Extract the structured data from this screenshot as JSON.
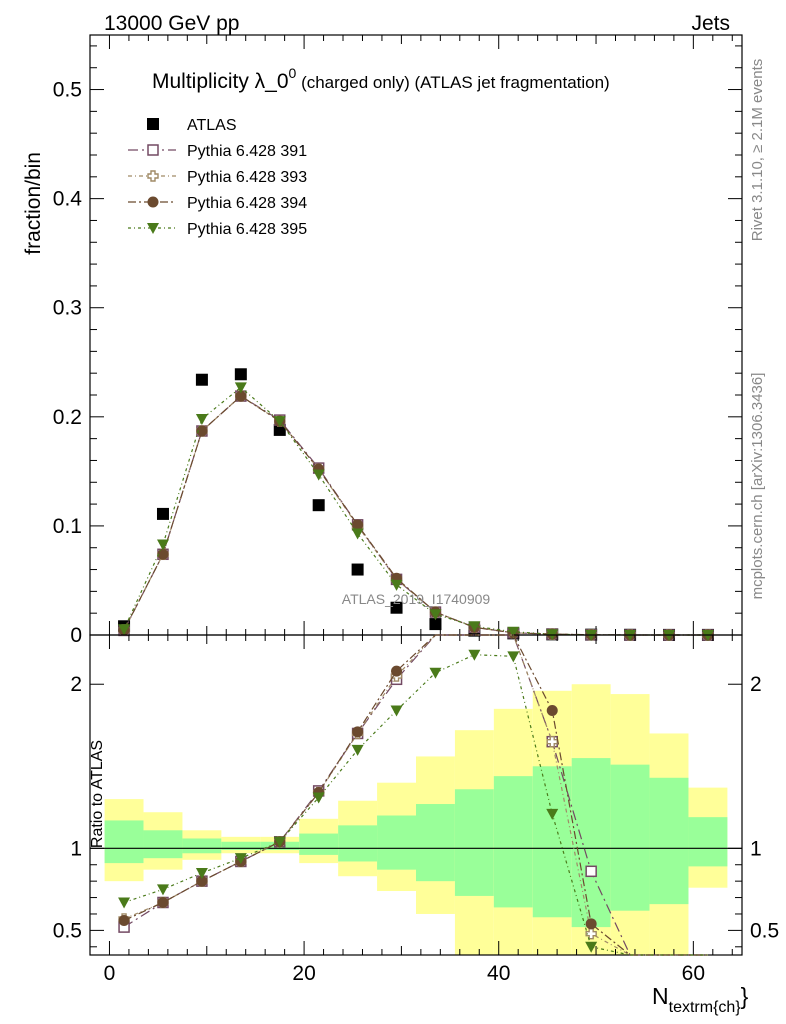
{
  "header": {
    "left": "13000 GeV pp",
    "right": "Jets"
  },
  "sidebar": {
    "rivet": "Rivet 3.1.10, ≥ 2.1M events",
    "mcplots": "mcplots.cern.ch [arXiv:1306.3436]"
  },
  "main": {
    "title": "Multiplicity λ_0",
    "title_sup": "0",
    "title_suffix": " (charged only) (ATLAS jet fragmentation)",
    "ylabel": "fraction/bin",
    "watermark": "ATLAS_2019_I1740909"
  },
  "ratio": {
    "ylabel": "Ratio to ATLAS"
  },
  "xaxis": {
    "label_main": "N",
    "label_sub": "textrm{ch}",
    "label_close": "}"
  },
  "legend": [
    {
      "label": "ATLAS"
    },
    {
      "label": "Pythia 6.428 391"
    },
    {
      "label": "Pythia 6.428 393"
    },
    {
      "label": "Pythia 6.428 394"
    },
    {
      "label": "Pythia 6.428 395"
    }
  ],
  "chart_data": {
    "type": "scatter",
    "x": [
      1.5,
      5.5,
      9.5,
      13.5,
      17.5,
      21.5,
      25.5,
      29.5,
      33.5,
      37.5,
      41.5,
      45.5,
      49.5,
      53.5,
      57.5,
      61.5
    ],
    "bin_edges": [
      -0.5,
      3.5,
      7.5,
      11.5,
      15.5,
      19.5,
      23.5,
      27.5,
      31.5,
      35.5,
      39.5,
      43.5,
      47.5,
      51.5,
      55.5,
      59.5,
      63.5
    ],
    "xlim": [
      -2,
      65
    ],
    "main_ylim": [
      0,
      0.55
    ],
    "ratio_ylim": [
      0.35,
      2.3
    ],
    "ratio_reference": 1,
    "series": [
      {
        "name": "ATLAS",
        "color": "#000000",
        "marker": "square-filled",
        "values": [
          0.008,
          0.111,
          0.234,
          0.239,
          0.188,
          0.119,
          0.06,
          0.025,
          0.01,
          0.004,
          0.0015,
          0.0006,
          0.0003,
          0.0002,
          0.0001,
          0.0001
        ]
      },
      {
        "name": "Pythia 6.428 391",
        "color": "#734a63",
        "marker": "square-open",
        "values": [
          0.0042,
          0.074,
          0.187,
          0.219,
          0.197,
          0.153,
          0.101,
          0.051,
          0.021,
          0.007,
          0.002,
          0.0008,
          0.0002,
          0.0,
          0.0,
          0.0
        ],
        "ratio": [
          0.52,
          0.67,
          0.8,
          0.92,
          1.04,
          1.35,
          1.7,
          2.03,
          2.3,
          2.3,
          2.3,
          1.65,
          0.86,
          0.0,
          0.0,
          0.0
        ]
      },
      {
        "name": "Pythia 6.428 393",
        "color": "#a08a66",
        "marker": "cross-open",
        "values": [
          0.0046,
          0.074,
          0.187,
          0.219,
          0.196,
          0.152,
          0.1,
          0.051,
          0.021,
          0.007,
          0.002,
          0.0008,
          0.0002,
          0.0,
          0.0,
          0.0
        ],
        "ratio": [
          0.57,
          0.67,
          0.8,
          0.92,
          1.04,
          1.34,
          1.7,
          2.05,
          2.3,
          2.3,
          2.3,
          1.65,
          0.48,
          0.0,
          0.0,
          0.0
        ]
      },
      {
        "name": "Pythia 6.428 394",
        "color": "#6b4a2f",
        "marker": "circle-filled",
        "values": [
          0.0045,
          0.074,
          0.187,
          0.219,
          0.196,
          0.152,
          0.101,
          0.052,
          0.021,
          0.007,
          0.002,
          0.0008,
          0.0002,
          0.0,
          0.0,
          0.0
        ],
        "ratio": [
          0.56,
          0.67,
          0.8,
          0.92,
          1.04,
          1.34,
          1.71,
          2.08,
          2.3,
          2.3,
          2.3,
          1.84,
          0.54,
          0.0,
          0.0,
          0.0
        ]
      },
      {
        "name": "Pythia 6.428 395",
        "color": "#4a7a1a",
        "marker": "triangle-down-filled",
        "values": [
          0.0053,
          0.083,
          0.198,
          0.227,
          0.196,
          0.147,
          0.093,
          0.046,
          0.019,
          0.008,
          0.003,
          0.0007,
          0.0001,
          0.0,
          0.0,
          0.0
        ],
        "ratio": [
          0.67,
          0.75,
          0.85,
          0.94,
          1.04,
          1.31,
          1.6,
          1.84,
          2.07,
          2.18,
          2.17,
          1.21,
          0.4,
          0.0,
          0.0,
          0.0
        ]
      }
    ],
    "bands": {
      "green_low": [
        0.91,
        0.94,
        0.97,
        0.99,
        0.99,
        0.96,
        0.92,
        0.87,
        0.8,
        0.71,
        0.64,
        0.58,
        0.52,
        0.62,
        0.66,
        0.89
      ],
      "green_high": [
        1.17,
        1.11,
        1.06,
        1.04,
        1.04,
        1.09,
        1.14,
        1.2,
        1.27,
        1.36,
        1.44,
        1.5,
        1.55,
        1.51,
        1.43,
        1.19
      ],
      "yellow_low": [
        0.8,
        0.87,
        0.93,
        0.97,
        0.97,
        0.91,
        0.83,
        0.74,
        0.6,
        0.35,
        0.35,
        0.35,
        0.35,
        0.35,
        0.35,
        0.76
      ],
      "yellow_high": [
        1.3,
        1.22,
        1.11,
        1.07,
        1.07,
        1.18,
        1.29,
        1.4,
        1.56,
        1.72,
        1.85,
        1.96,
        2.0,
        1.94,
        1.7,
        1.37
      ]
    },
    "green_color": "#99ff99",
    "yellow_color": "#ffff99",
    "xticks": [
      0,
      20,
      40,
      60
    ],
    "main_yticks": [
      0,
      0.1,
      0.2,
      0.3,
      0.4,
      0.5
    ],
    "main_ytick_labels": [
      "0",
      "0.1",
      "0.2",
      "0.3",
      "0.4",
      "0.5"
    ],
    "ratio_yticks": [
      0.5,
      1,
      2
    ],
    "ratio_ytick_labels": [
      "0.5",
      "1",
      "2"
    ]
  }
}
